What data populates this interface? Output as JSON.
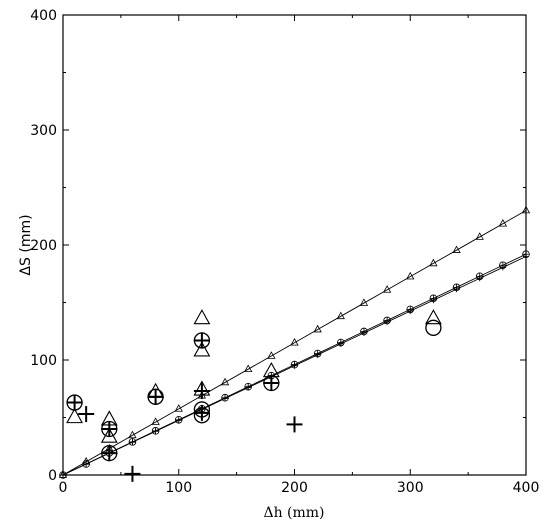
{
  "chart_data": {
    "type": "scatter",
    "xlabel": "Δh (mm)",
    "ylabel": "ΔS (mm)",
    "xlim": [
      0,
      400
    ],
    "ylim": [
      0,
      400
    ],
    "xticks": [
      "0",
      "100",
      "200",
      "300",
      "400"
    ],
    "yticks": [
      "0",
      "100",
      "200",
      "300",
      "400"
    ],
    "grid": false,
    "legend": "none",
    "series": [
      {
        "marker": "small-triangle-line",
        "x": [
          0,
          20,
          40,
          60,
          80,
          100,
          120,
          140,
          160,
          180,
          200,
          220,
          240,
          260,
          280,
          300,
          320,
          340,
          360,
          380,
          400
        ],
        "y": [
          0,
          11.5,
          23,
          34.5,
          46,
          57.5,
          69,
          80.5,
          92,
          103.5,
          115,
          126.5,
          138,
          149.5,
          161,
          172.5,
          184,
          195.5,
          207,
          218.5,
          230
        ]
      },
      {
        "marker": "small-circle-cross-line",
        "x": [
          0,
          20,
          40,
          60,
          80,
          100,
          120,
          140,
          160,
          180,
          200,
          220,
          240,
          260,
          280,
          300,
          320,
          340,
          360,
          380,
          400
        ],
        "y": [
          0,
          9.6,
          19.2,
          28.8,
          38.4,
          48,
          57.6,
          67.2,
          76.8,
          86.4,
          96,
          105.6,
          115.2,
          124.8,
          134.4,
          144,
          153.6,
          163.2,
          172.8,
          182.4,
          192
        ]
      },
      {
        "marker": "small-plus-line",
        "x": [
          0,
          20,
          40,
          60,
          80,
          100,
          120,
          140,
          160,
          180,
          200,
          220,
          240,
          260,
          280,
          300,
          320,
          340,
          360,
          380,
          400
        ],
        "y": [
          0,
          9.5,
          19,
          28.5,
          38,
          47.5,
          57,
          66.5,
          76,
          85.5,
          95,
          104.5,
          114,
          123.5,
          133,
          142.5,
          152,
          161.5,
          171,
          180.5,
          190
        ]
      },
      {
        "marker": "large-triangle",
        "x": [
          10,
          40,
          40,
          80,
          120,
          120,
          120,
          180,
          320
        ],
        "y": [
          50,
          48,
          33,
          72,
          136,
          108,
          74,
          90,
          136
        ]
      },
      {
        "marker": "large-circle",
        "x": [
          10,
          40,
          40,
          80,
          120,
          120,
          120,
          180,
          320
        ],
        "y": [
          63,
          40,
          19,
          68,
          117,
          57,
          52,
          80,
          128
        ]
      },
      {
        "marker": "large-plus",
        "x": [
          10,
          20,
          40,
          40,
          60,
          80,
          120,
          120,
          120,
          180,
          200
        ],
        "y": [
          63,
          53,
          40,
          19,
          1,
          68,
          117,
          73,
          54,
          80,
          44
        ]
      }
    ]
  }
}
